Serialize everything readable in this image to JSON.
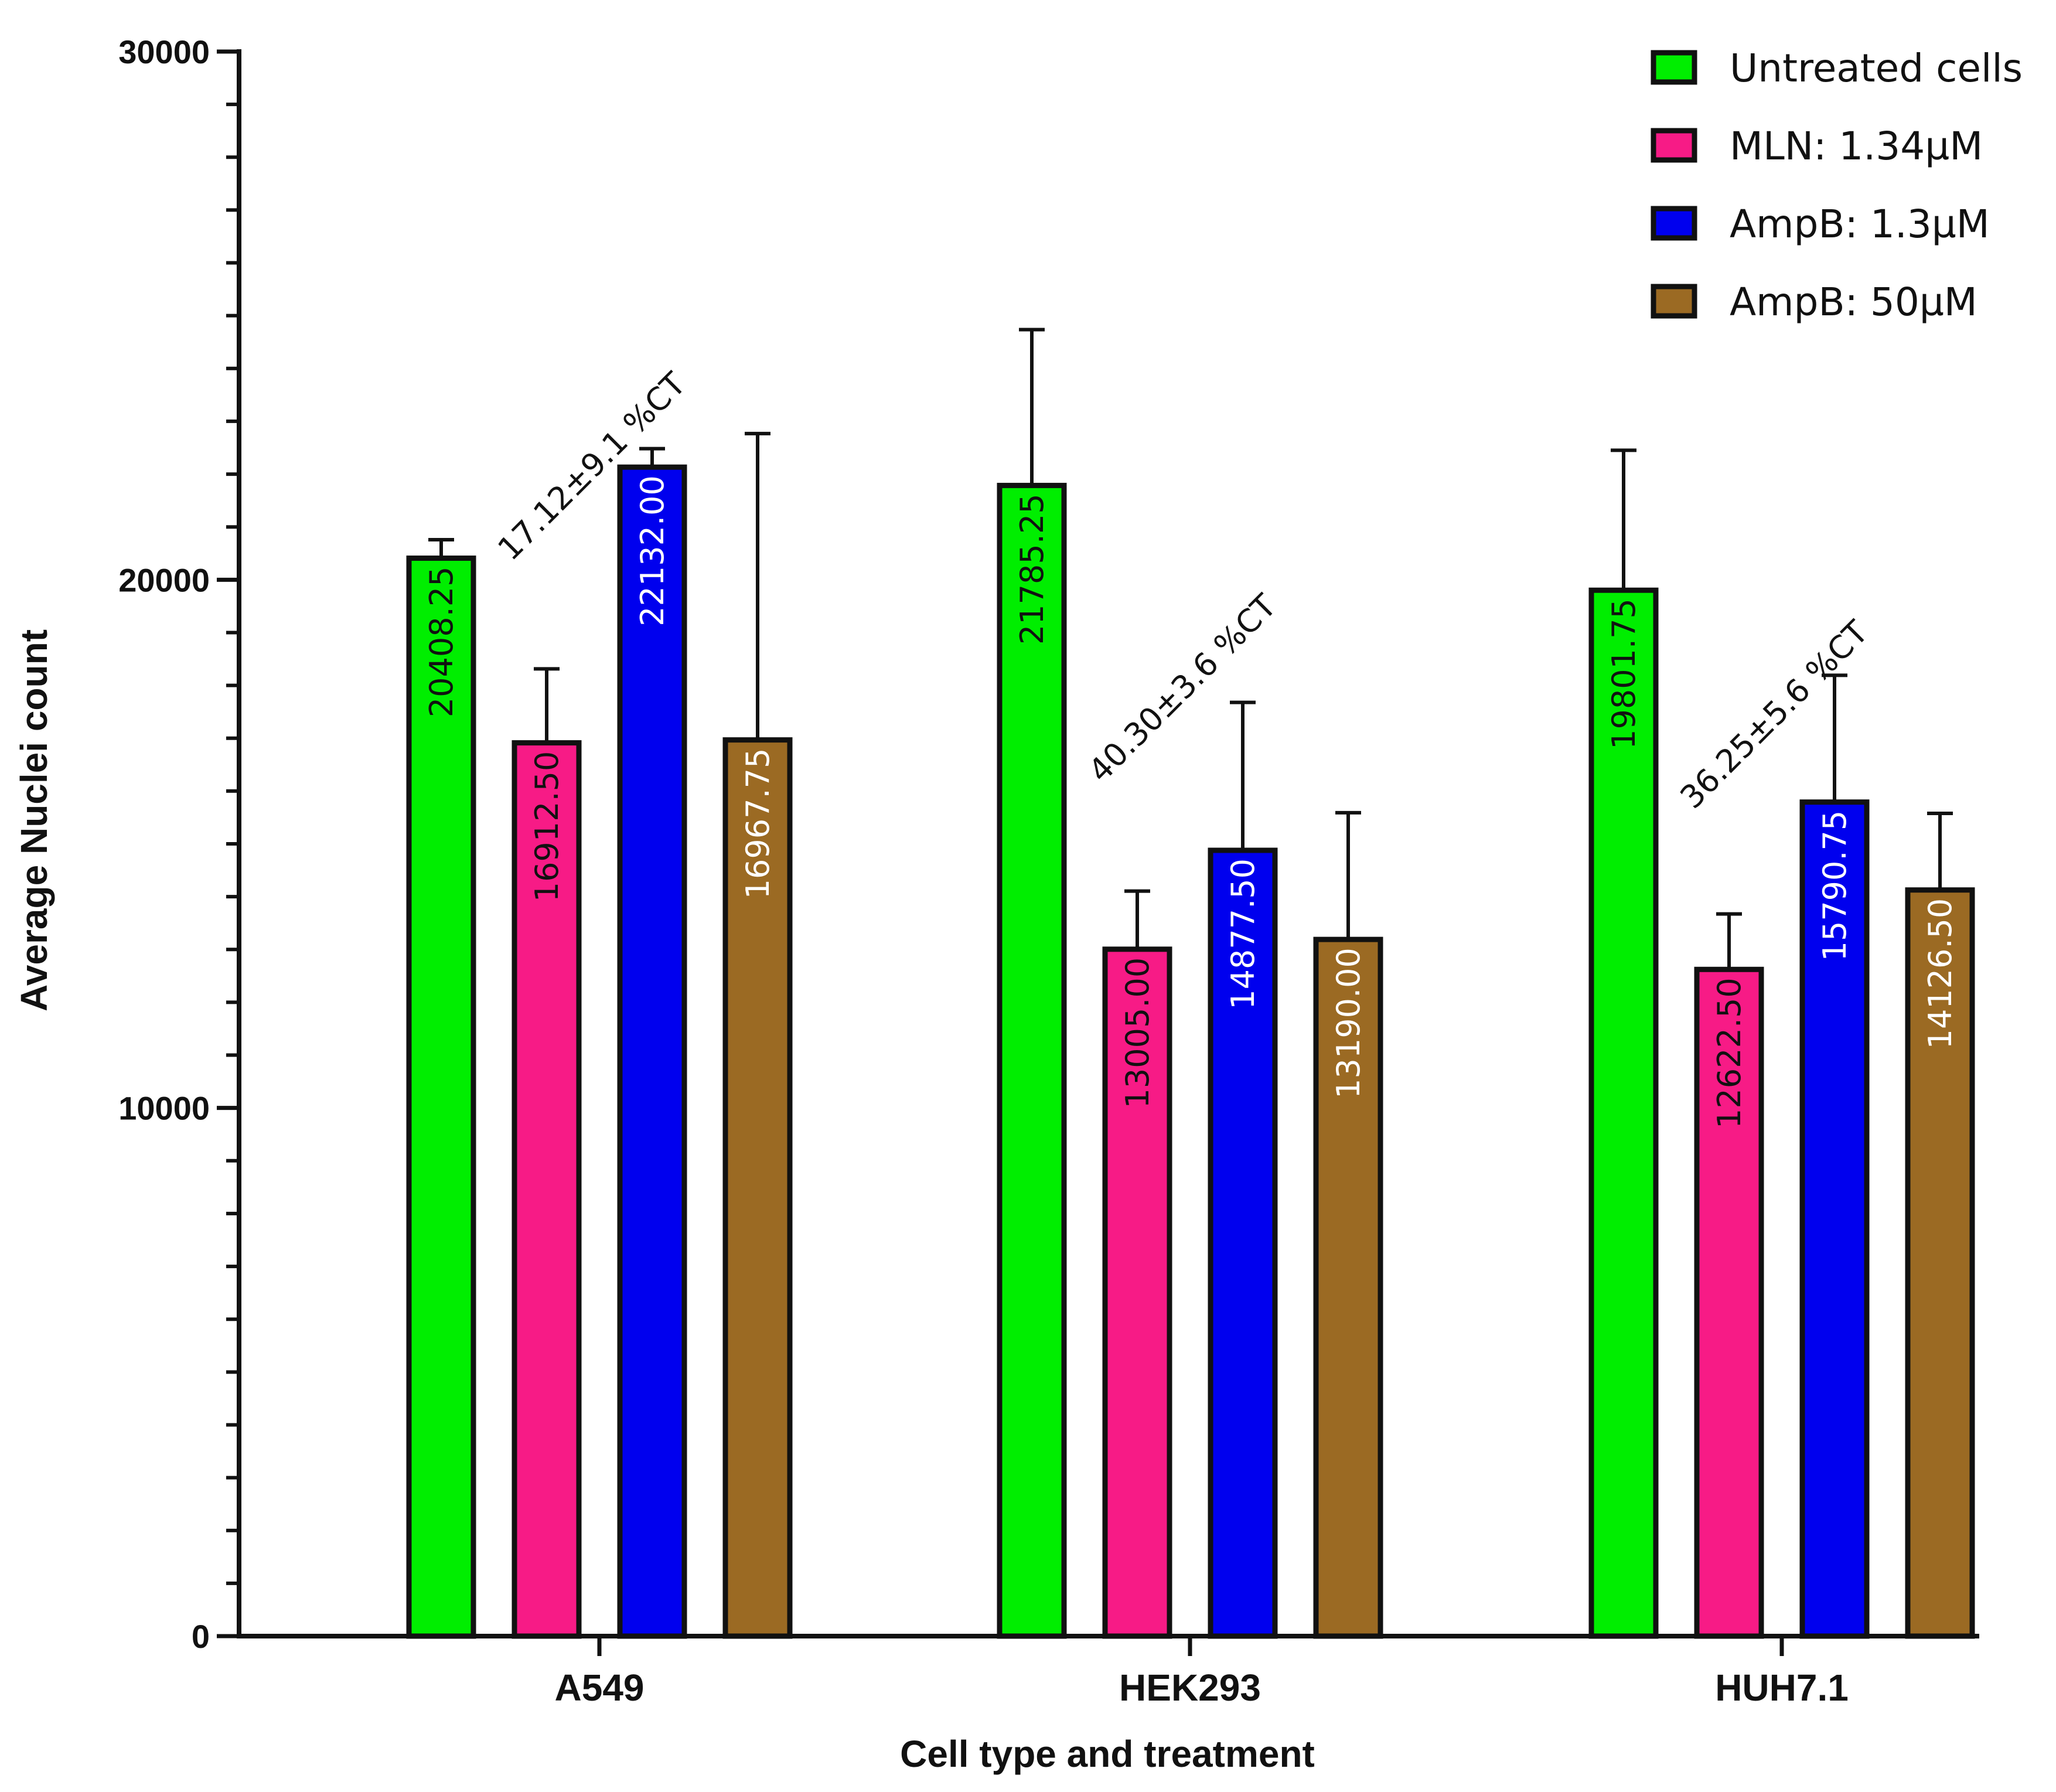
{
  "chart_data": {
    "type": "bar",
    "title": "",
    "xlabel": "Cell type and treatment",
    "ylabel": "Average Nuclei count",
    "ylim": [
      0,
      30000
    ],
    "yticks": [
      0,
      10000,
      20000,
      30000
    ],
    "ytick_labels": [
      "0",
      "10000",
      "20000",
      "30000"
    ],
    "categories": [
      "A549",
      "HEK293",
      "HUH7.1"
    ],
    "series": [
      {
        "name": "Untreated cells",
        "color": "#00ee00",
        "label_color": "#111111",
        "values": [
          20408.25,
          21785.25,
          19801.75
        ],
        "value_labels": [
          "20408.25",
          "21785.25",
          "19801.75"
        ],
        "errors": [
          350,
          2950,
          2650
        ]
      },
      {
        "name": "MLN: 1.34µM",
        "color": "#f71b86",
        "label_color": "#111111",
        "values": [
          16912.5,
          13005.0,
          12622.5
        ],
        "value_labels": [
          "16912.50",
          "13005.00",
          "12622.50"
        ],
        "errors": [
          1400,
          1100,
          1050
        ]
      },
      {
        "name": "AmpB: 1.3µM",
        "color": "#0000ee",
        "label_color": "#ffffff",
        "values": [
          22132.0,
          14877.5,
          15790.75
        ],
        "value_labels": [
          "22132.00",
          "14877.50",
          "15790.75"
        ],
        "errors": [
          350,
          2800,
          2400
        ]
      },
      {
        "name": "AmpB: 50µM",
        "color": "#9b6a23",
        "label_color": "#ffffff",
        "values": [
          16967.75,
          13190.0,
          14126.5
        ],
        "value_labels": [
          "16967.75",
          "13190.00",
          "14126.50"
        ],
        "errors": [
          5800,
          2400,
          1450
        ]
      }
    ],
    "annotations": [
      {
        "text": "17.12±9.1 %CT",
        "category": "A549",
        "y": 22000
      },
      {
        "text": "40.30±3.6 %CT",
        "category": "HEK293",
        "y": 17800
      },
      {
        "text": "36.25±5.6 %CT",
        "category": "HUH7.1",
        "y": 17300
      }
    ],
    "legend_position": "top-right",
    "grid": false
  }
}
